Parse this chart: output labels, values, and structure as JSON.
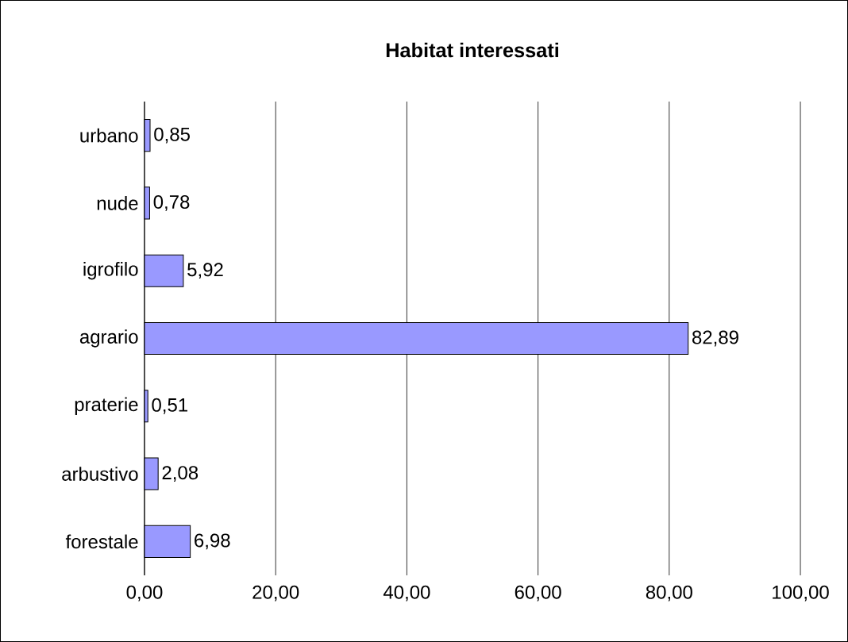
{
  "chart_data": {
    "type": "bar",
    "orientation": "horizontal",
    "title": "Habitat interessati",
    "categories": [
      "urbano",
      "nude",
      "igrofilo",
      "agrario",
      "praterie",
      "arbustivo",
      "forestale"
    ],
    "values": [
      0.85,
      0.78,
      5.92,
      82.89,
      0.51,
      2.08,
      6.98
    ],
    "value_labels": [
      "0,85",
      "0,78",
      "5,92",
      "82,89",
      "0,51",
      "2,08",
      "6,98"
    ],
    "color": "#9999ff",
    "xlim": [
      0,
      100
    ],
    "xticks": [
      {
        "value": 0,
        "label": "0,00"
      },
      {
        "value": 20,
        "label": "20,00"
      },
      {
        "value": 40,
        "label": "40,00"
      },
      {
        "value": 60,
        "label": "60,00"
      },
      {
        "value": 80,
        "label": "80,00"
      },
      {
        "value": 100,
        "label": "100,00"
      }
    ],
    "grid": "x"
  }
}
